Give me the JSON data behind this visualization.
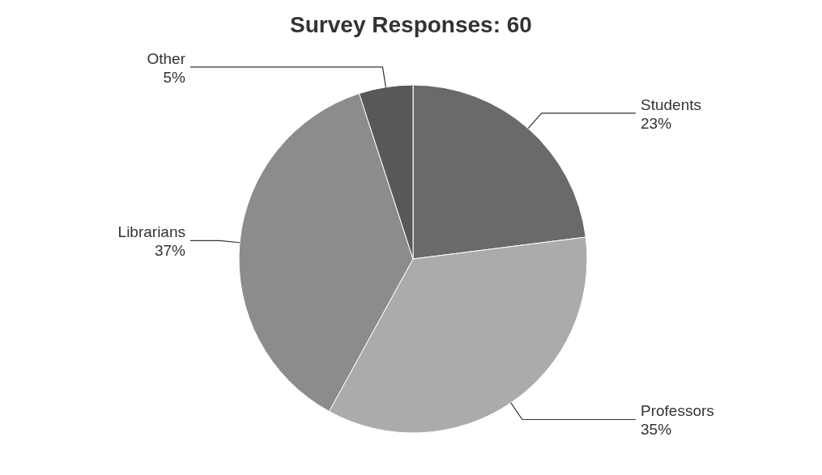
{
  "chart_data": {
    "type": "pie",
    "title": "Survey Responses: 60",
    "categories": [
      "Students",
      "Professors",
      "Librarians",
      "Other"
    ],
    "values": [
      23,
      35,
      37,
      5
    ],
    "value_labels": [
      "23%",
      "35%",
      "37%",
      "5%"
    ],
    "colors": [
      "#6a6a6a",
      "#ababab",
      "#8c8c8c",
      "#585858"
    ]
  }
}
